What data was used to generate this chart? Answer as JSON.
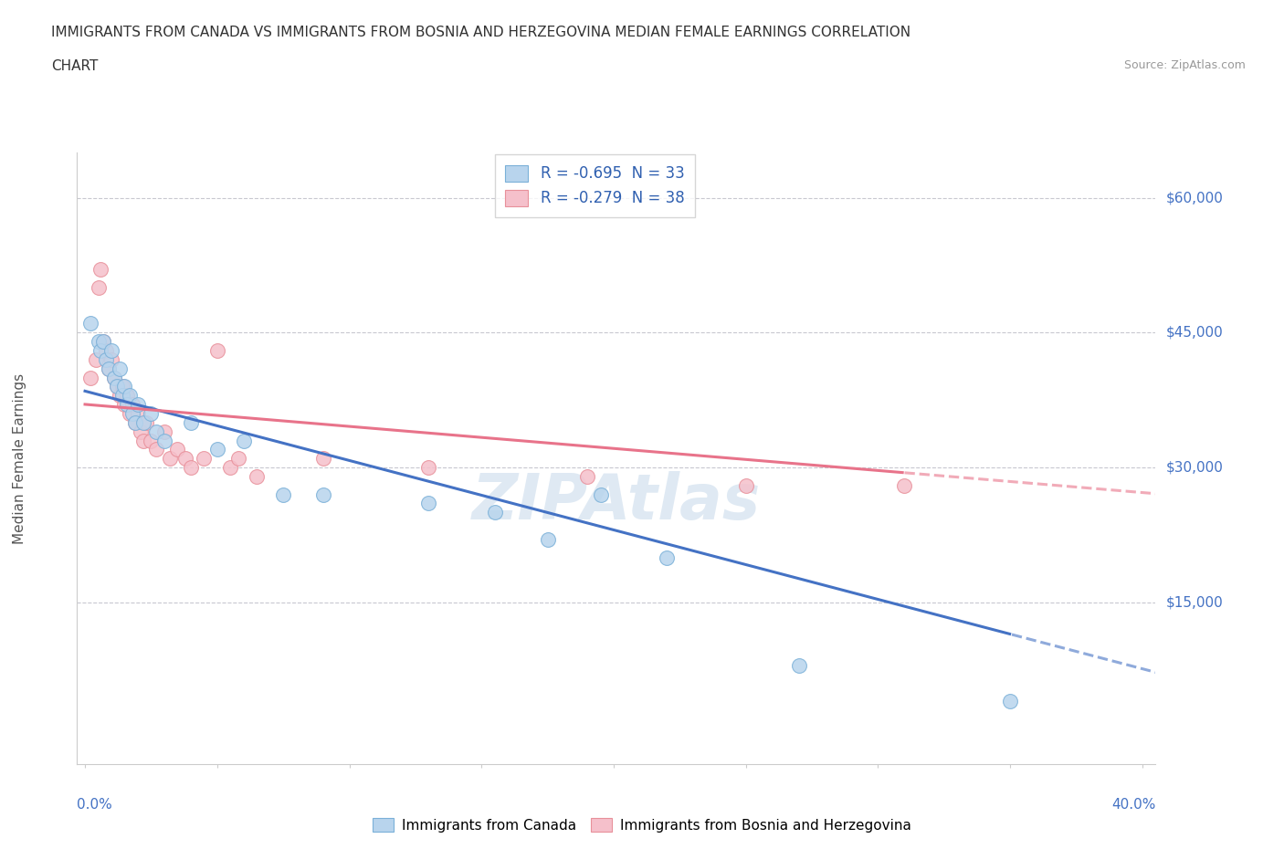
{
  "title_line1": "IMMIGRANTS FROM CANADA VS IMMIGRANTS FROM BOSNIA AND HERZEGOVINA MEDIAN FEMALE EARNINGS CORRELATION",
  "title_line2": "CHART",
  "source": "Source: ZipAtlas.com",
  "ylabel": "Median Female Earnings",
  "canada_R": -0.695,
  "canada_N": 33,
  "bosnia_R": -0.279,
  "bosnia_N": 38,
  "canada_color": "#b8d4ed",
  "canada_edge": "#7ab0d8",
  "bosnia_color": "#f5c0cb",
  "bosnia_edge": "#e8909a",
  "canada_line_color": "#4472c4",
  "bosnia_line_color": "#e8738a",
  "legend_R_color": "#3060b0",
  "watermark_color": "#c5d8ea",
  "background_color": "#ffffff",
  "xlim": [
    0.0,
    0.4
  ],
  "ylim": [
    -3000,
    65000
  ],
  "y_ticks": [
    0,
    15000,
    30000,
    45000,
    60000
  ],
  "y_tick_labels": [
    "",
    "$15,000",
    "$30,000",
    "$45,000",
    "$60,000"
  ],
  "canada_x": [
    0.002,
    0.005,
    0.006,
    0.007,
    0.008,
    0.009,
    0.01,
    0.011,
    0.012,
    0.013,
    0.014,
    0.015,
    0.016,
    0.017,
    0.018,
    0.019,
    0.02,
    0.022,
    0.025,
    0.027,
    0.03,
    0.04,
    0.05,
    0.06,
    0.075,
    0.09,
    0.13,
    0.175,
    0.22,
    0.27,
    0.195,
    0.155,
    0.35
  ],
  "canada_y": [
    46000,
    44000,
    43000,
    44000,
    42000,
    41000,
    43000,
    40000,
    39000,
    41000,
    38000,
    39000,
    37000,
    38000,
    36000,
    35000,
    37000,
    35000,
    36000,
    34000,
    33000,
    35000,
    32000,
    33000,
    27000,
    27000,
    26000,
    22000,
    20000,
    8000,
    27000,
    25000,
    4000
  ],
  "bosnia_x": [
    0.002,
    0.004,
    0.005,
    0.006,
    0.007,
    0.008,
    0.009,
    0.01,
    0.011,
    0.012,
    0.013,
    0.014,
    0.015,
    0.016,
    0.017,
    0.018,
    0.019,
    0.02,
    0.021,
    0.022,
    0.023,
    0.025,
    0.027,
    0.03,
    0.032,
    0.035,
    0.038,
    0.04,
    0.045,
    0.05,
    0.055,
    0.058,
    0.065,
    0.09,
    0.13,
    0.19,
    0.25,
    0.31
  ],
  "bosnia_y": [
    40000,
    42000,
    50000,
    52000,
    44000,
    43000,
    41000,
    42000,
    40000,
    39000,
    38000,
    39000,
    37000,
    38000,
    36000,
    37000,
    35000,
    36000,
    34000,
    33000,
    35000,
    33000,
    32000,
    34000,
    31000,
    32000,
    31000,
    30000,
    31000,
    43000,
    30000,
    31000,
    29000,
    31000,
    30000,
    29000,
    28000,
    28000
  ]
}
